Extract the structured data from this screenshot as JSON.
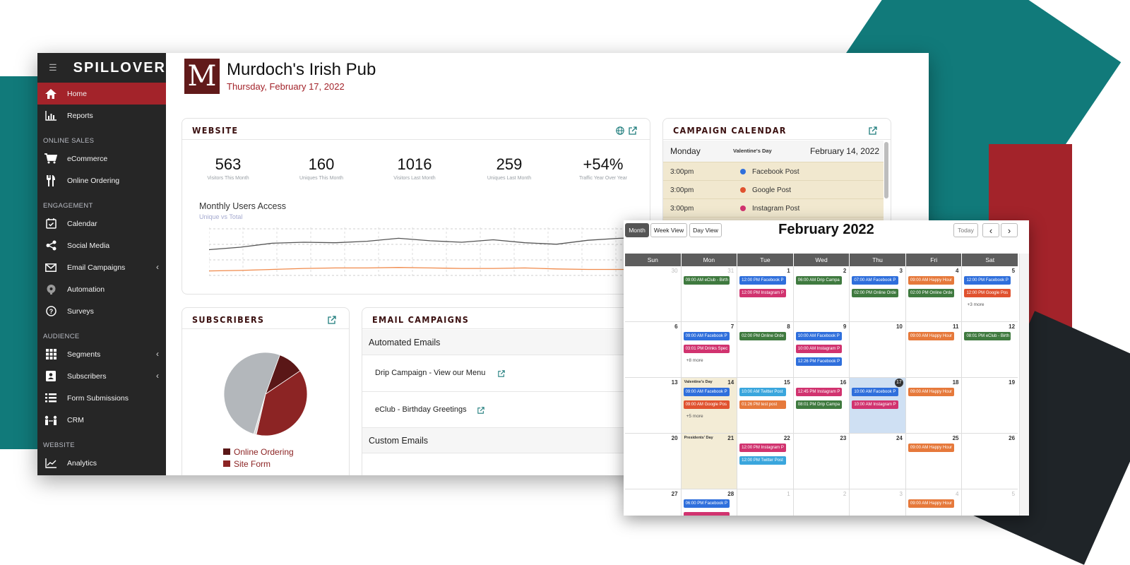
{
  "sidebar": {
    "logo": "SPILLOVER",
    "home": "Home",
    "reports": "Reports",
    "sec_online_sales": "ONLINE SALES",
    "ecommerce": "eCommerce",
    "online_ordering": "Online Ordering",
    "sec_engagement": "ENGAGEMENT",
    "calendar": "Calendar",
    "social_media": "Social Media",
    "email_campaigns": "Email Campaigns",
    "automation": "Automation",
    "surveys": "Surveys",
    "sec_audience": "AUDIENCE",
    "segments": "Segments",
    "subscribers": "Subscribers",
    "form_submissions": "Form Submissions",
    "crm": "CRM",
    "sec_website": "WEBSITE",
    "analytics": "Analytics"
  },
  "header": {
    "logo_letter": "M",
    "business_name": "Murdoch's Irish Pub",
    "date": "Thursday, February 17, 2022"
  },
  "website": {
    "title": "WEBSITE",
    "stats": [
      {
        "value": "563",
        "label": "Visitors This Month"
      },
      {
        "value": "160",
        "label": "Uniques This Month"
      },
      {
        "value": "1016",
        "label": "Visitors Last Month"
      },
      {
        "value": "259",
        "label": "Uniques Last Month"
      },
      {
        "value": "+54%",
        "label": "Traffic Year Over Year"
      }
    ],
    "chart_title": "Monthly Users Access",
    "chart_subtitle": "Unique vs Total"
  },
  "chart_data": {
    "type": "line",
    "title": "Monthly Users Access",
    "subtitle": "Unique vs Total",
    "series": [
      {
        "color": "#555555",
        "values": [
          0.55,
          0.6,
          0.68,
          0.7,
          0.69,
          0.72,
          0.78,
          0.73,
          0.7,
          0.75,
          0.69,
          0.66,
          0.74,
          0.78,
          0.8
        ]
      },
      {
        "color": "#f08a4b",
        "values": [
          0.12,
          0.13,
          0.15,
          0.17,
          0.18,
          0.18,
          0.19,
          0.18,
          0.17,
          0.17,
          0.18,
          0.16,
          0.15,
          0.15,
          0.15
        ]
      }
    ],
    "grid": true
  },
  "campaign_calendar": {
    "title": "CAMPAIGN CALENDAR",
    "day": "Monday",
    "holiday": "Valentine's Day",
    "date": "February 14, 2022",
    "items": [
      {
        "time": "3:00pm",
        "label": "Facebook Post",
        "color": "#2f6fdc"
      },
      {
        "time": "3:00pm",
        "label": "Google Post",
        "color": "#e0522f"
      },
      {
        "time": "3:00pm",
        "label": "Instagram Post",
        "color": "#d1336f"
      }
    ]
  },
  "subscribers": {
    "title": "SUBSCRIBERS",
    "legend": [
      {
        "label": "Online Ordering",
        "color": "#5a1717"
      },
      {
        "label": "Site Form",
        "color": "#8c2424"
      }
    ],
    "pie": [
      {
        "label": "Online Ordering",
        "value": 10,
        "color": "#5a1717"
      },
      {
        "label": "Site Form",
        "value": 38,
        "color": "#8c2424"
      },
      {
        "label": "",
        "value": 1,
        "color": "#d9d9d9"
      },
      {
        "label": "",
        "value": 51,
        "color": "#b3b7bb"
      }
    ]
  },
  "email_campaigns": {
    "title": "EMAIL CAMPAIGNS",
    "automated_header": "Automated Emails",
    "automated": [
      "Drip Campaign - View our Menu",
      "eClub - Birthday Greetings"
    ],
    "custom_header": "Custom Emails"
  },
  "calendar": {
    "btn_month": "Month",
    "btn_week": "Week View",
    "btn_day": "Day View",
    "title": "February 2022",
    "btn_today": "Today",
    "weekdays": [
      "Sun",
      "Mon",
      "Tue",
      "Wed",
      "Thu",
      "Fri",
      "Sat"
    ],
    "weeks": [
      [
        {
          "day": "30",
          "muted": true,
          "events": []
        },
        {
          "day": "31",
          "muted": true,
          "events": [
            {
              "t": "09:00 AM eClub - Birth",
              "c": "#3f7a3f"
            }
          ]
        },
        {
          "day": "1",
          "events": [
            {
              "t": "12:00 PM Facebook P",
              "c": "#2f6fdc"
            },
            {
              "t": "12:00 PM Instagram P",
              "c": "#d1336f"
            }
          ]
        },
        {
          "day": "2",
          "events": [
            {
              "t": "06:00 AM Drip Campa",
              "c": "#3f7a3f"
            }
          ]
        },
        {
          "day": "3",
          "events": [
            {
              "t": "07:00 AM Facebook P",
              "c": "#2f6fdc"
            },
            {
              "t": "02:00 PM Online Orde",
              "c": "#3f7a3f"
            }
          ]
        },
        {
          "day": "4",
          "events": [
            {
              "t": "09:00 AM Happy Hour",
              "c": "#e6793b"
            },
            {
              "t": "02:00 PM Online Orde",
              "c": "#3f7a3f"
            }
          ]
        },
        {
          "day": "5",
          "events": [
            {
              "t": "12:00 PM Facebook P",
              "c": "#2f6fdc"
            },
            {
              "t": "12:00 PM Google Pos",
              "c": "#e0522f"
            }
          ],
          "more": "+3 more"
        }
      ],
      [
        {
          "day": "6",
          "events": []
        },
        {
          "day": "7",
          "events": [
            {
              "t": "09:00 AM Facebook P",
              "c": "#2f6fdc"
            },
            {
              "t": "03:01 PM Drinks Spec",
              "c": "#d1336f"
            }
          ],
          "more": "+8 more"
        },
        {
          "day": "8",
          "events": [
            {
              "t": "02:00 PM Online Orde",
              "c": "#3f7a3f"
            }
          ]
        },
        {
          "day": "9",
          "events": [
            {
              "t": "10:00 AM Facebook P",
              "c": "#2f6fdc"
            },
            {
              "t": "10:00 AM Instagram P",
              "c": "#d1336f"
            },
            {
              "t": "12:26 PM Facebook P",
              "c": "#2f6fdc"
            }
          ]
        },
        {
          "day": "10",
          "events": []
        },
        {
          "day": "11",
          "events": [
            {
              "t": "09:00 AM Happy Hour",
              "c": "#e6793b"
            }
          ]
        },
        {
          "day": "12",
          "events": [
            {
              "t": "08:01 PM eClub - Birth",
              "c": "#3f7a3f"
            }
          ]
        }
      ],
      [
        {
          "day": "13",
          "events": []
        },
        {
          "day": "14",
          "note": "Valentine's Day",
          "highlight": "#f3ecd6",
          "events": [
            {
              "t": "09:00 AM Facebook P",
              "c": "#2f6fdc"
            },
            {
              "t": "09:00 AM Google Pos",
              "c": "#e0522f"
            }
          ],
          "more": "+5 more"
        },
        {
          "day": "15",
          "events": [
            {
              "t": "10:00 AM Twitter Post",
              "c": "#3aa6dd"
            },
            {
              "t": "01:26 PM test post",
              "c": "#e6793b"
            }
          ]
        },
        {
          "day": "16",
          "events": [
            {
              "t": "12:45 PM Instagram P",
              "c": "#d1336f"
            },
            {
              "t": "08:01 PM Drip Campa",
              "c": "#3f7a3f"
            }
          ]
        },
        {
          "day": "17",
          "today": true,
          "highlight": "#cfe0f3",
          "events": [
            {
              "t": "10:00 AM Facebook P",
              "c": "#2f6fdc"
            },
            {
              "t": "10:00 AM Instagram P",
              "c": "#d1336f"
            }
          ]
        },
        {
          "day": "18",
          "events": [
            {
              "t": "09:00 AM Happy Hour",
              "c": "#e6793b"
            }
          ]
        },
        {
          "day": "19",
          "events": []
        }
      ],
      [
        {
          "day": "20",
          "events": []
        },
        {
          "day": "21",
          "note": "Presidents' Day",
          "highlight": "#f3ecd6",
          "events": []
        },
        {
          "day": "22",
          "events": [
            {
              "t": "12:00 PM Instagram P",
              "c": "#d1336f"
            },
            {
              "t": "12:00 PM Twitter Post",
              "c": "#3aa6dd"
            }
          ]
        },
        {
          "day": "23",
          "events": []
        },
        {
          "day": "24",
          "events": []
        },
        {
          "day": "25",
          "events": [
            {
              "t": "09:00 AM Happy Hour",
              "c": "#e6793b"
            }
          ]
        },
        {
          "day": "26",
          "events": []
        }
      ],
      [
        {
          "day": "27",
          "events": []
        },
        {
          "day": "28",
          "events": [
            {
              "t": "06:00 PM Facebook P",
              "c": "#2f6fdc"
            },
            {
              "t": "",
              "c": "#d1336f"
            }
          ]
        },
        {
          "day": "1",
          "muted": true,
          "events": []
        },
        {
          "day": "2",
          "muted": true,
          "events": []
        },
        {
          "day": "3",
          "muted": true,
          "events": []
        },
        {
          "day": "4",
          "muted": true,
          "events": [
            {
              "t": "09:00 AM Happy Hour",
              "c": "#e6793b"
            }
          ]
        },
        {
          "day": "5",
          "muted": true,
          "events": []
        }
      ]
    ]
  }
}
